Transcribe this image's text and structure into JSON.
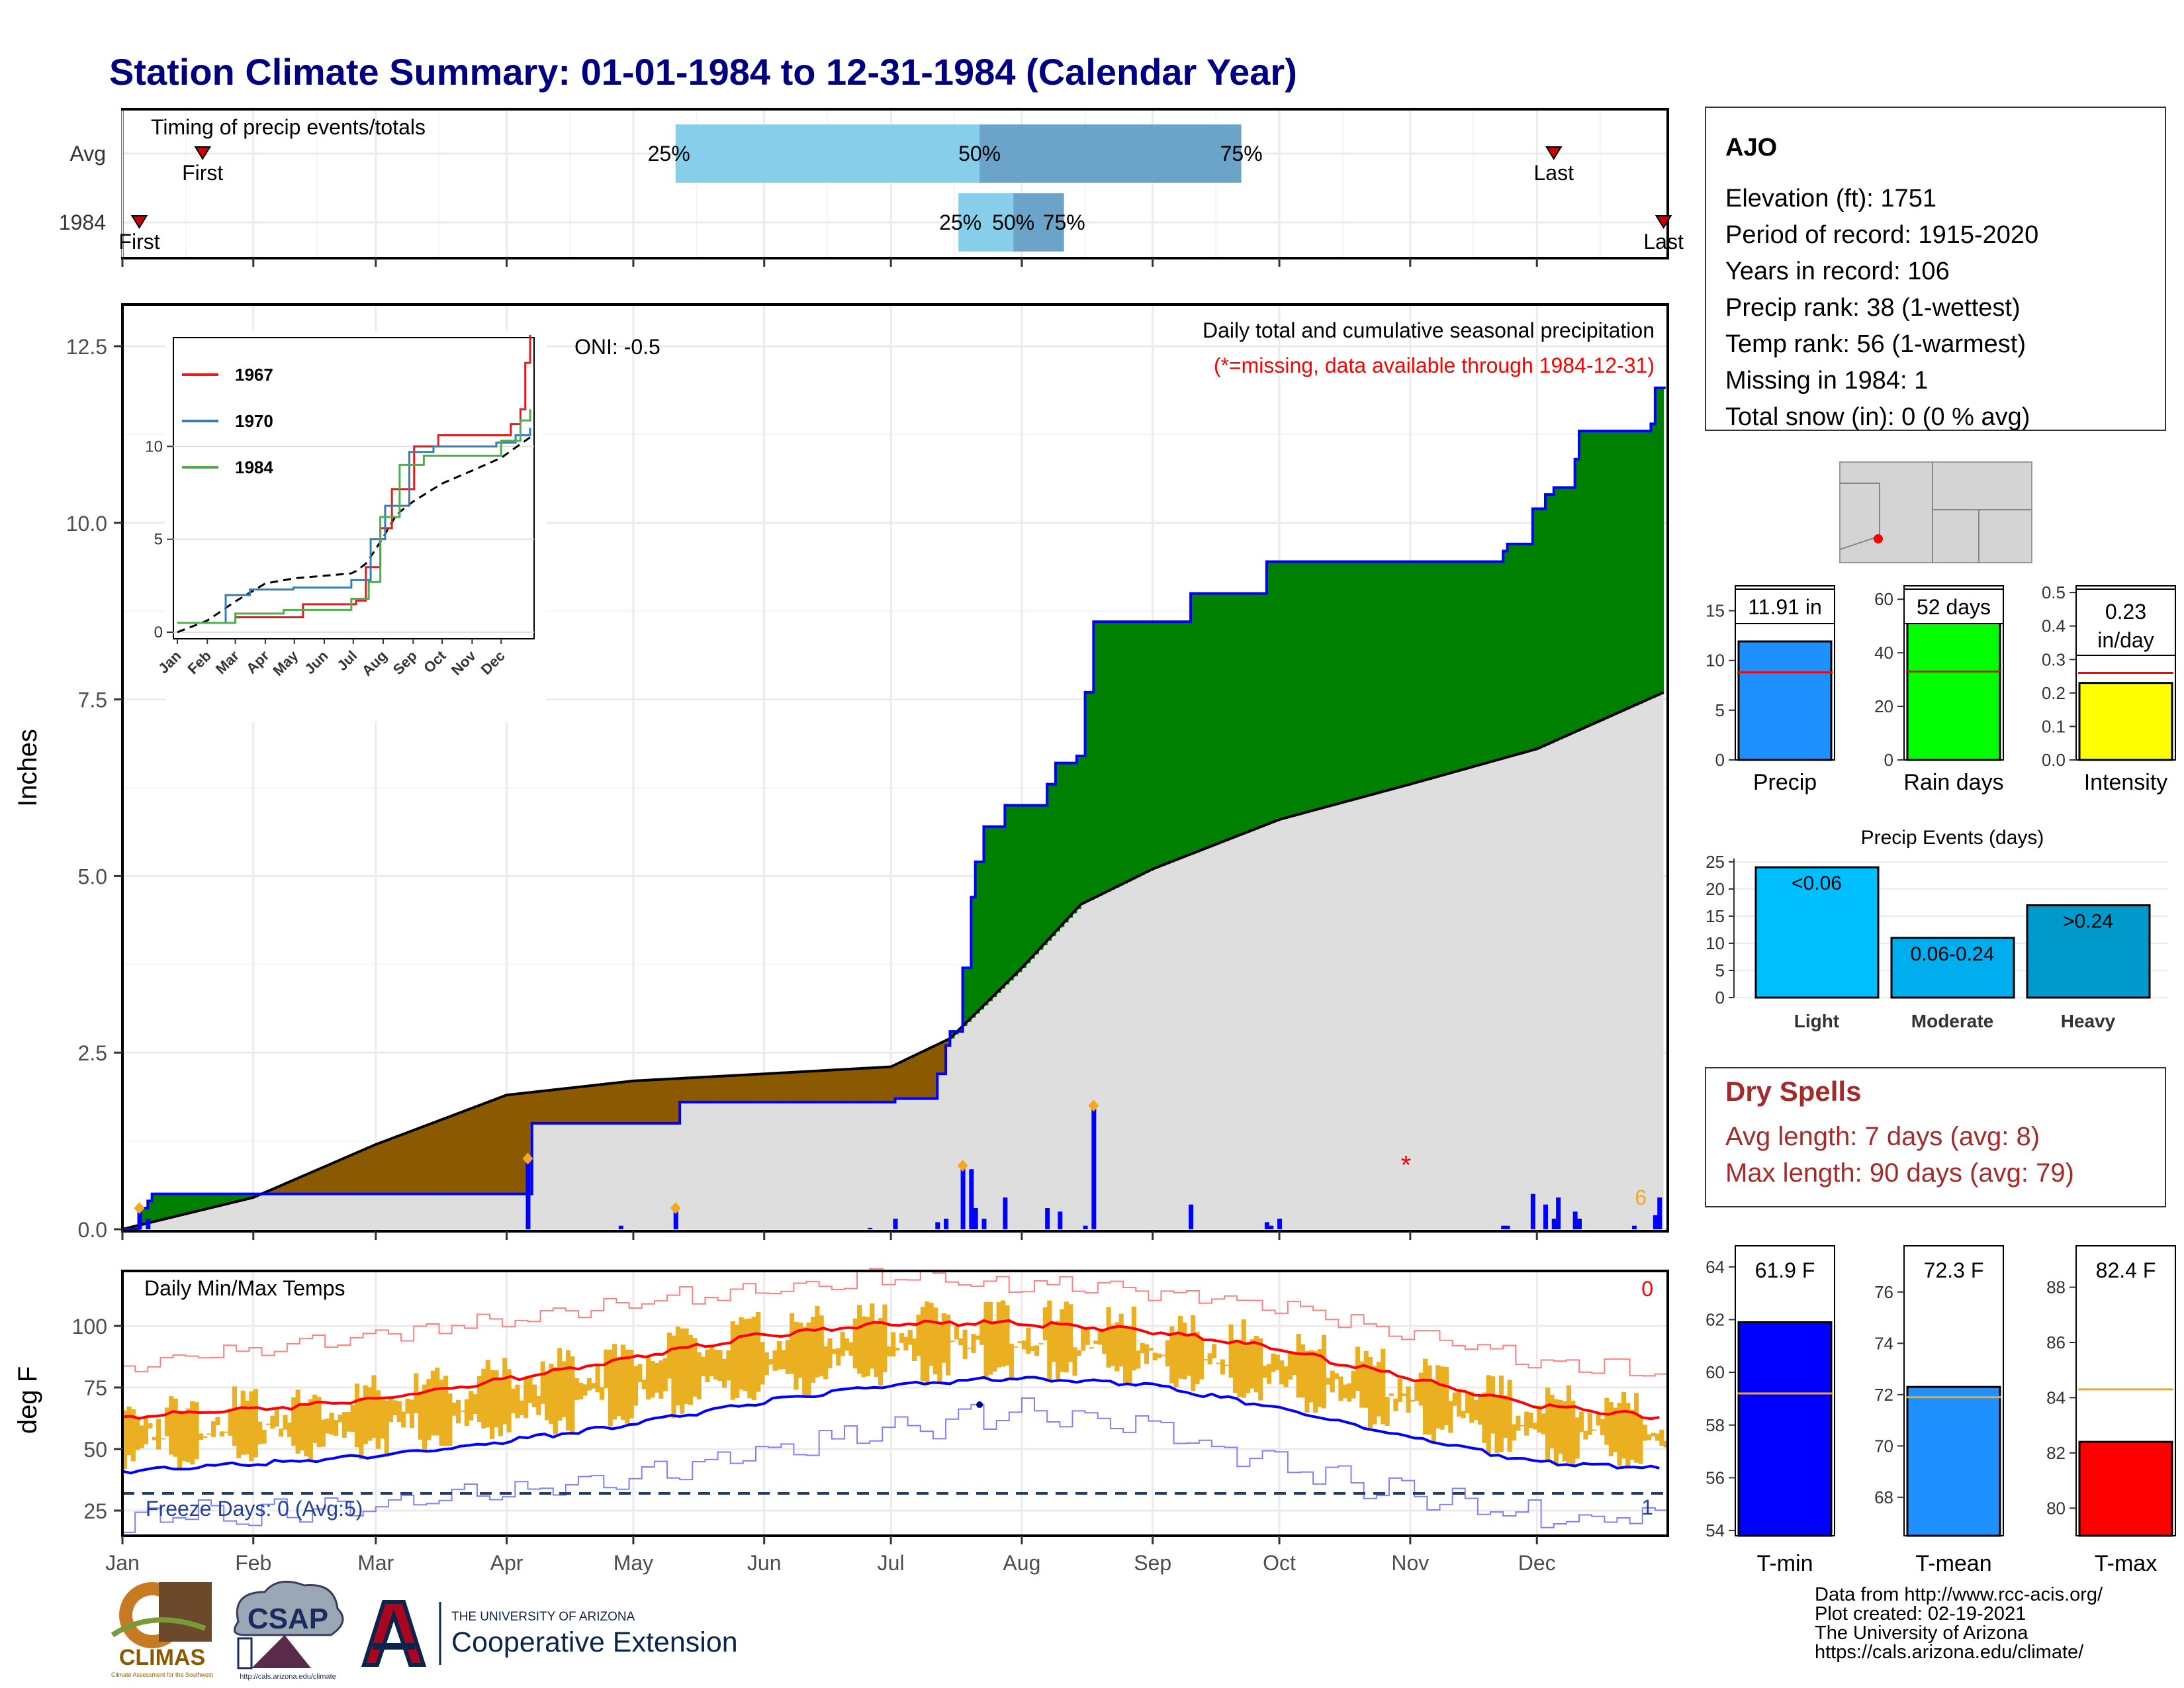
{
  "title": "Station Climate Summary: 01-01-1984 to 12-31-1984 (Calendar Year)",
  "months": [
    "Jan",
    "Feb",
    "Mar",
    "Apr",
    "May",
    "Jun",
    "Jul",
    "Aug",
    "Sep",
    "Oct",
    "Nov",
    "Dec"
  ],
  "colors": {
    "title": "#000080",
    "green": "#008000",
    "brown": "#8B5A00",
    "grey": "#DEDEDE",
    "blue": "#0000FF",
    "orange": "#F5A623",
    "red": "#FF0000",
    "lightblue": "#87CEEB",
    "steelblue": "#6BA3C9",
    "dryred": "#A52A2A"
  },
  "timing": {
    "label": "Timing of precip events/totals",
    "rows": [
      {
        "label": "Avg",
        "first": "First",
        "last": "Last",
        "p25": "25%",
        "p50": "50%",
        "p75": "75%",
        "first_date": "1984-01-20",
        "p25_date": "1984-05-11",
        "p50_date": "1984-07-22",
        "p75_date": "1984-09-22",
        "last_date": "1984-12-05"
      },
      {
        "label": "1984",
        "first": "First",
        "last": "Last",
        "p25": "25%",
        "p50": "50%",
        "p75": "75%",
        "first_date": "1984-01-05",
        "p25_date": "1984-07-17",
        "p50_date": "1984-07-30",
        "p75_date": "1984-08-11",
        "last_date": "1984-12-31"
      }
    ]
  },
  "chart_data": [
    {
      "type": "area",
      "title": "Daily total and cumulative seasonal precipitation",
      "subtitle": "(*=missing, data available through 1984-12-31)",
      "ylabel": "Inches",
      "ylim": [
        0,
        12.5
      ],
      "yticks": [
        "0.0",
        "2.5",
        "5.0",
        "7.5",
        "10.0",
        "12.5"
      ],
      "oni": "ONI: -0.5",
      "missing_count_label": "6",
      "cumulative_1984": {
        "name": "1984",
        "x": [
          "1984-01-01",
          "1984-01-05",
          "1984-01-07",
          "1984-01-08",
          "1984-04-06",
          "1984-04-07",
          "1984-05-11",
          "1984-05-12",
          "1984-07-01",
          "1984-07-02",
          "1984-07-10",
          "1984-07-12",
          "1984-07-14",
          "1984-07-15",
          "1984-07-17",
          "1984-07-18",
          "1984-07-19",
          "1984-07-20",
          "1984-07-21",
          "1984-07-22",
          "1984-07-23",
          "1984-07-25",
          "1984-07-28",
          "1984-07-30",
          "1984-08-04",
          "1984-08-07",
          "1984-08-09",
          "1984-08-14",
          "1984-08-16",
          "1984-08-18",
          "1984-08-19",
          "1984-09-10",
          "1984-09-28",
          "1984-10-27",
          "1984-11-23",
          "1984-11-24",
          "1984-11-30",
          "1984-12-03",
          "1984-12-05",
          "1984-12-10",
          "1984-12-11",
          "1984-12-24",
          "1984-12-28",
          "1984-12-29",
          "1984-12-31"
        ],
        "y": [
          0,
          0.3,
          0.4,
          0.5,
          0.5,
          1.5,
          1.5,
          1.8,
          1.8,
          1.85,
          1.85,
          2.2,
          2.6,
          2.8,
          2.8,
          3.7,
          3.7,
          4.7,
          5.2,
          5.2,
          5.7,
          5.7,
          6.0,
          6.0,
          6.0,
          6.3,
          6.6,
          6.7,
          7.6,
          8.6,
          8.6,
          9.0,
          9.45,
          9.45,
          9.6,
          9.7,
          10.2,
          10.4,
          10.5,
          10.9,
          11.3,
          11.3,
          11.4,
          11.91,
          11.91
        ]
      },
      "cumulative_avg": {
        "name": "Avg",
        "x": [
          "1984-01-01",
          "1984-02-01",
          "1984-03-01",
          "1984-04-01",
          "1984-05-01",
          "1984-06-01",
          "1984-07-01",
          "1984-07-15",
          "1984-08-01",
          "1984-08-15",
          "1984-09-01",
          "1984-10-01",
          "1984-11-01",
          "1984-12-01",
          "1984-12-31"
        ],
        "y": [
          0,
          0.45,
          1.2,
          1.9,
          2.1,
          2.2,
          2.3,
          2.7,
          3.7,
          4.6,
          5.1,
          5.8,
          6.3,
          6.8,
          7.6
        ]
      },
      "daily_bars": {
        "x": [
          "1984-01-05",
          "1984-01-07",
          "1984-04-06",
          "1984-04-28",
          "1984-05-11",
          "1984-06-26",
          "1984-07-02",
          "1984-07-12",
          "1984-07-14",
          "1984-07-18",
          "1984-07-20",
          "1984-07-21",
          "1984-07-23",
          "1984-07-28",
          "1984-08-07",
          "1984-08-10",
          "1984-08-16",
          "1984-08-18",
          "1984-09-10",
          "1984-09-28",
          "1984-09-29",
          "1984-10-01",
          "1984-11-23",
          "1984-11-24",
          "1984-11-30",
          "1984-12-03",
          "1984-12-05",
          "1984-12-06",
          "1984-12-10",
          "1984-12-11",
          "1984-12-24",
          "1984-12-29",
          "1984-12-30"
        ],
        "y": [
          0.3,
          0.15,
          1.0,
          0.05,
          0.3,
          0.02,
          0.15,
          0.1,
          0.15,
          0.9,
          0.85,
          0.3,
          0.15,
          0.45,
          0.3,
          0.25,
          0.05,
          1.75,
          0.35,
          0.1,
          0.05,
          0.15,
          0.05,
          0.05,
          0.5,
          0.35,
          0.15,
          0.45,
          0.25,
          0.15,
          0.05,
          0.2,
          0.45
        ]
      },
      "missing_markers": [
        "1984-10-31"
      ]
    },
    {
      "type": "line",
      "title": "",
      "series": [
        {
          "name": "1967"
        },
        {
          "name": "1970"
        },
        {
          "name": "1984"
        }
      ],
      "xlabels": [
        "Jan",
        "Feb",
        "Mar",
        "Apr",
        "May",
        "Jun",
        "Jul",
        "Aug",
        "Sep",
        "Oct",
        "Nov",
        "Dec"
      ],
      "yticks": [
        "0",
        "5",
        "10"
      ],
      "ylim": [
        0,
        15.5
      ],
      "legend": "top-left"
    },
    {
      "type": "line",
      "title": "Daily Min/Max Temps",
      "ylabel": "deg F",
      "ylim": [
        15,
        122
      ],
      "yticks": [
        "25",
        "50",
        "75",
        "100"
      ],
      "freeze_label": "Freeze Days: 0 (Avg:5)",
      "freeze_threshold": 32,
      "max_count_label": "0",
      "min_count_label": "1",
      "avg_max": {
        "x": [
          0,
          31,
          59,
          90,
          120,
          151,
          181,
          212,
          243,
          273,
          304,
          334,
          365
        ],
        "y": [
          63,
          66,
          70,
          78,
          87,
          96,
          101,
          101,
          98,
          91,
          79,
          68,
          63
        ]
      },
      "avg_min": {
        "x": [
          0,
          31,
          59,
          90,
          120,
          151,
          181,
          212,
          243,
          273,
          304,
          334,
          365
        ],
        "y": [
          41,
          44,
          47,
          53,
          60,
          69,
          76,
          79,
          76,
          67,
          55,
          45,
          42
        ]
      },
      "record_max": {
        "x": [
          0,
          31,
          59,
          90,
          120,
          151,
          181,
          212,
          243,
          273,
          304,
          334,
          365
        ],
        "y": [
          83,
          90,
          96,
          103,
          110,
          116,
          120,
          117,
          114,
          108,
          96,
          86,
          82
        ]
      },
      "record_min": {
        "x": [
          0,
          31,
          59,
          90,
          120,
          151,
          181,
          212,
          243,
          273,
          304,
          334,
          365
        ],
        "y": [
          22,
          25,
          27,
          32,
          40,
          48,
          57,
          65,
          58,
          44,
          32,
          23,
          22
        ]
      }
    },
    {
      "type": "bar",
      "categories": [
        "Precip",
        "Rain days",
        "Intensity"
      ],
      "values": [
        11.91,
        52,
        0.23
      ],
      "averages": [
        8.8,
        33,
        0.26
      ],
      "labels": [
        "11.91 in",
        "52 days",
        "0.23 in/day"
      ],
      "yticks": [
        [
          "0",
          "5",
          "10",
          "15"
        ],
        [
          "0",
          "20",
          "40",
          "60"
        ],
        [
          "0.0",
          "0.1",
          "0.2",
          "0.3",
          "0.4",
          "0.5"
        ]
      ],
      "ylims": [
        [
          0,
          17.5
        ],
        [
          0,
          65
        ],
        [
          0,
          0.52
        ]
      ]
    },
    {
      "type": "bar",
      "title": "Precip Events (days)",
      "categories": [
        "Light",
        "Moderate",
        "Heavy"
      ],
      "bar_labels": [
        "<0.06",
        "0.06-0.24",
        ">0.24"
      ],
      "values": [
        24,
        11,
        17
      ],
      "yticks": [
        "0",
        "5",
        "10",
        "15",
        "20",
        "25"
      ],
      "ylim": [
        0,
        25
      ]
    },
    {
      "type": "bar",
      "categories": [
        "T-min",
        "T-mean",
        "T-max"
      ],
      "values": [
        61.9,
        72.3,
        82.4
      ],
      "labels": [
        "61.9 F",
        "72.3 F",
        "82.4 F"
      ],
      "averages": [
        59.2,
        71.9,
        84.3
      ],
      "yticks": [
        [
          "54",
          "56",
          "58",
          "60",
          "62",
          "64"
        ],
        [
          "68",
          "70",
          "72",
          "74",
          "76"
        ],
        [
          "80",
          "82",
          "84",
          "86",
          "88"
        ]
      ],
      "ylims": [
        [
          53.8,
          64.8
        ],
        [
          66.5,
          77.8
        ],
        [
          79,
          89.5
        ]
      ]
    }
  ],
  "station": {
    "name": "AJO",
    "elevation": "Elevation (ft): 1751",
    "period": "Period of record: 1915-2020",
    "years": "Years in record: 106",
    "precip_rank": "Precip rank: 38 (1-wettest)",
    "temp_rank": "Temp rank: 56 (1-warmest)",
    "missing": "Missing in 1984: 1",
    "snow": "Total snow (in): 0 (0 % avg)"
  },
  "dry_spells": {
    "title": "Dry Spells",
    "avg": "Avg length: 7 days (avg: 8)",
    "max": "Max length: 90 days (avg: 79)"
  },
  "footer": {
    "line1": "Data from http://www.rcc-acis.org/",
    "line2": "Plot created: 02-19-2021",
    "line3": "The University of Arizona",
    "line4": "https://cals.arizona.edu/climate/"
  },
  "logos": {
    "climas": "CLIMAS",
    "climas_sub": "Climate Assessment for the Southwest",
    "csap": "CSAP",
    "csap_sub": "http://cals.arizona.edu/climate",
    "ua_small": "THE UNIVERSITY OF ARIZONA",
    "ua_big": "Cooperative Extension"
  }
}
